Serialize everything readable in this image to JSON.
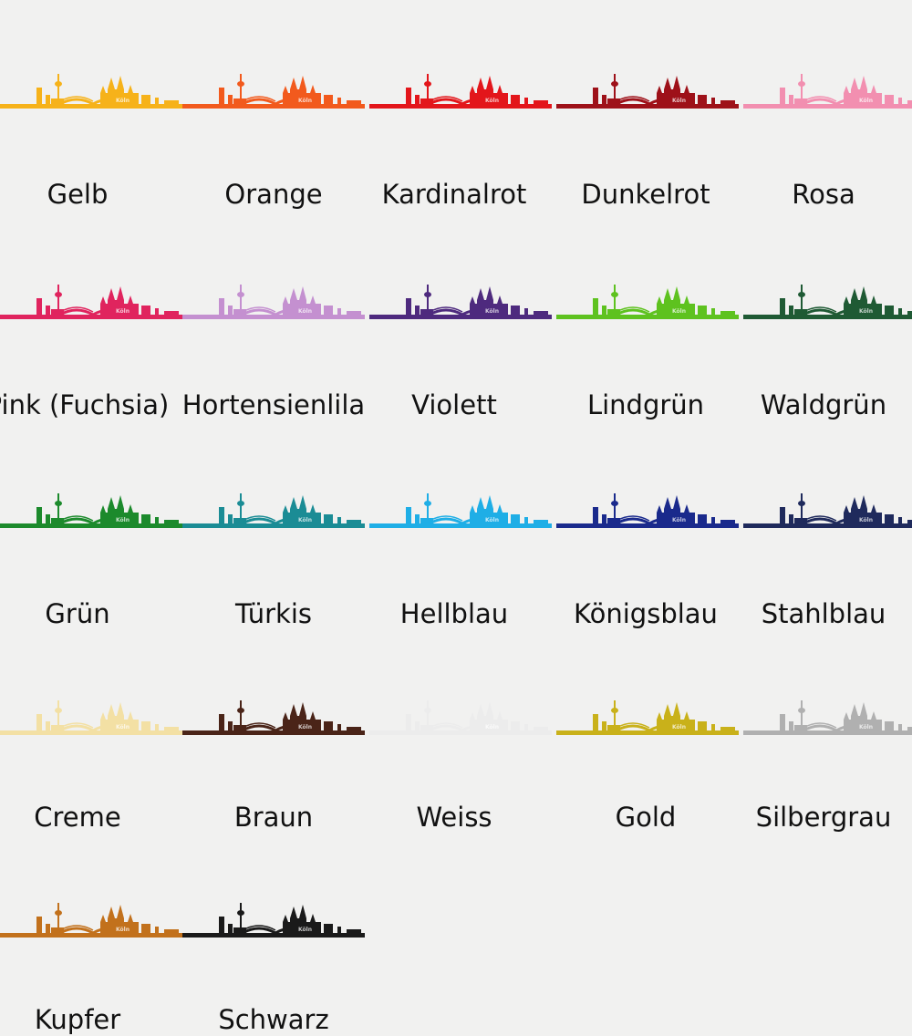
{
  "skyline_text": "Köln",
  "colors": [
    {
      "label": "Gelb",
      "color": "#f6b21a"
    },
    {
      "label": "Orange",
      "color": "#f25a1d"
    },
    {
      "label": "Kardinalrot",
      "color": "#e3161b"
    },
    {
      "label": "Dunkelrot",
      "color": "#9e1119"
    },
    {
      "label": "Rosa",
      "color": "#f28fb0"
    },
    {
      "label": "Pink (Fuchsia)",
      "color": "#e0245e"
    },
    {
      "label": "Hortensienlila",
      "color": "#c490d0"
    },
    {
      "label": "Violett",
      "color": "#4e2a7e"
    },
    {
      "label": "Lindgrün",
      "color": "#5ec21f"
    },
    {
      "label": "Waldgrün",
      "color": "#1f5a34"
    },
    {
      "label": "Grün",
      "color": "#1c8a2c"
    },
    {
      "label": "Türkis",
      "color": "#1b8c95"
    },
    {
      "label": "Hellblau",
      "color": "#1faee6"
    },
    {
      "label": "Königsblau",
      "color": "#1a2a8c"
    },
    {
      "label": "Stahlblau",
      "color": "#1f2a5c"
    },
    {
      "label": "Creme",
      "color": "#f3e0a4"
    },
    {
      "label": "Braun",
      "color": "#4a2418"
    },
    {
      "label": "Weiss",
      "color": "#ececec"
    },
    {
      "label": "Gold",
      "color": "#c9b11a"
    },
    {
      "label": "Silbergrau",
      "color": "#b0b0b0"
    },
    {
      "label": "Kupfer",
      "color": "#c2711c"
    },
    {
      "label": "Schwarz",
      "color": "#1a1a1a"
    }
  ]
}
